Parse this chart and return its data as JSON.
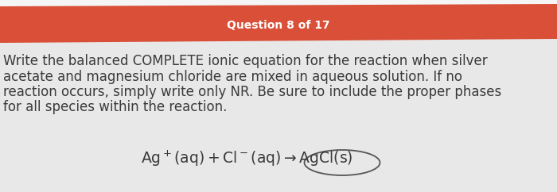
{
  "header_text": "Question 8 of 17",
  "header_bg_color": "#d94f38",
  "header_text_color": "#ffffff",
  "body_bg_color": "#e8e8e8",
  "white_strip_color": "#f5f5f5",
  "body_text_color": "#3a3a3a",
  "body_line1": "Write the balanced COMPLETE ionic equation for the reaction when silver",
  "body_line2": "acetate and magnesium chloride are mixed in aqueous solution. If no",
  "body_line3": "reaction occurs, simply write only NR. Be sure to include the proper phases",
  "body_line4": "for all species within the reaction.",
  "fig_width": 7.0,
  "fig_height": 2.42,
  "body_fontsize": 12.0,
  "header_fontsize": 10.0,
  "equation_fontsize": 13.5,
  "ellipse_color": "#555555"
}
